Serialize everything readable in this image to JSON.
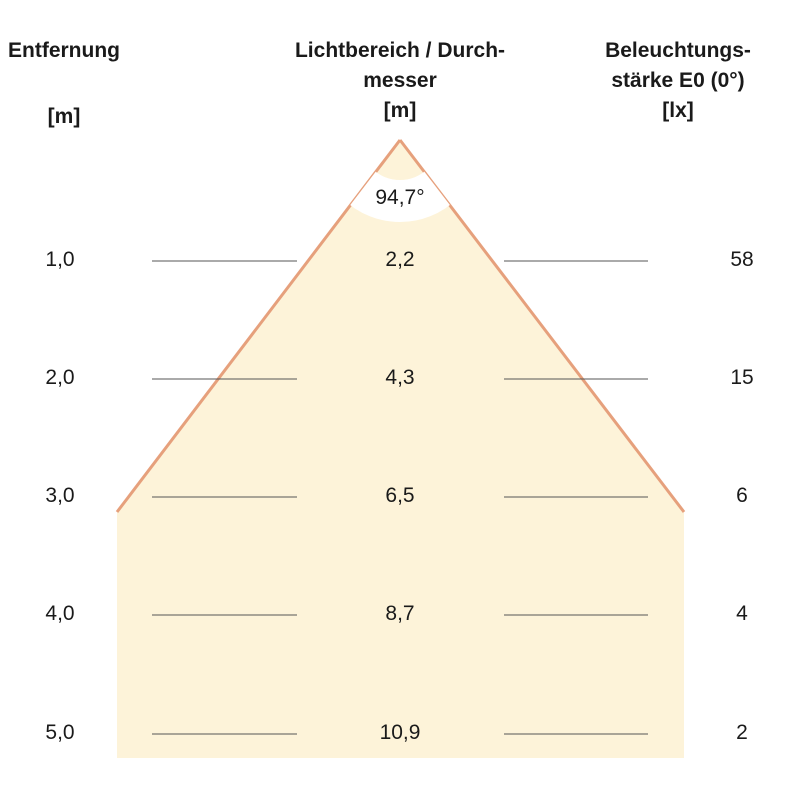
{
  "headers": {
    "distance": {
      "title": "Entfernung",
      "unit": "[m]"
    },
    "diameter": {
      "title_line1": "Lichtbereich / Durch-",
      "title_line2": "messer",
      "unit": "[m]"
    },
    "illuminance": {
      "title_line1": "Beleuchtungs-",
      "title_line2": "stärke E0 (0°)",
      "unit": "[lx]"
    }
  },
  "beam_angle": "94,7°",
  "rows": [
    {
      "distance": "1,0",
      "diameter": "2,2",
      "illuminance": "58"
    },
    {
      "distance": "2,0",
      "diameter": "4,3",
      "illuminance": "15"
    },
    {
      "distance": "3,0",
      "diameter": "6,5",
      "illuminance": "6"
    },
    {
      "distance": "4,0",
      "diameter": "8,7",
      "illuminance": "4"
    },
    {
      "distance": "5,0",
      "diameter": "10,9",
      "illuminance": "2"
    }
  ],
  "colors": {
    "cone_fill": "#fdf3d9",
    "cone_edge": "#e6a07c",
    "line": "#555555"
  }
}
